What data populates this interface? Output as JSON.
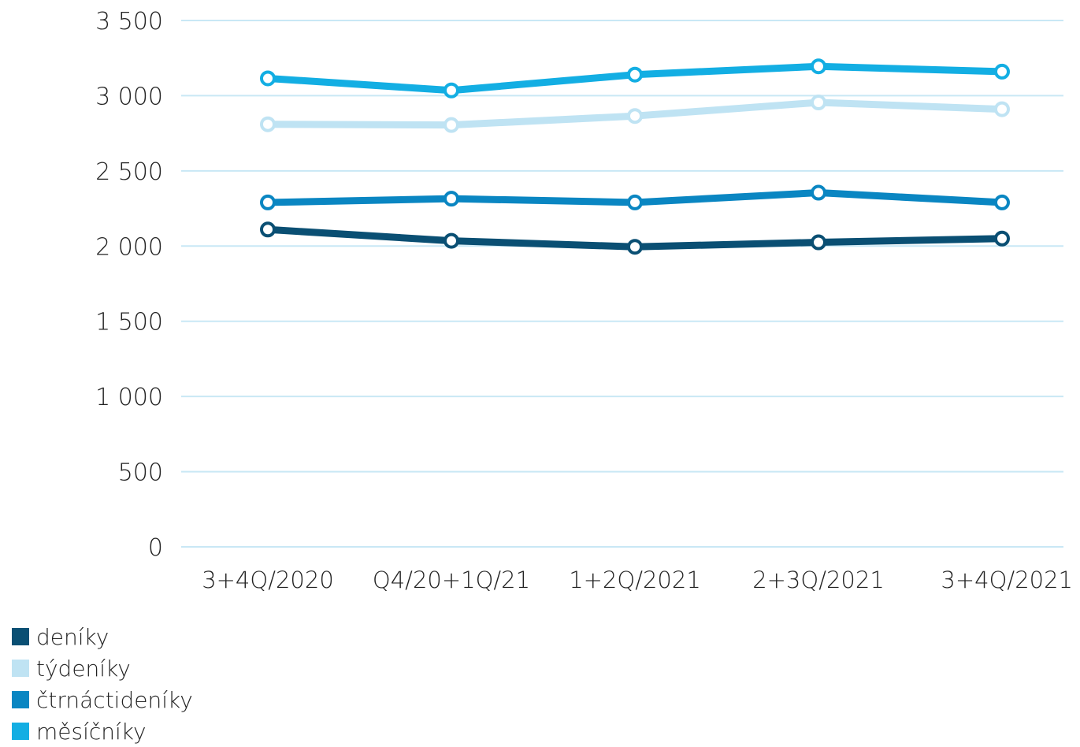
{
  "chart_data": {
    "type": "line",
    "categories": [
      "3+4Q/2020",
      "Q4/20+1Q/21",
      "1+2Q/2021",
      "2+3Q/2021",
      "3+4Q/2021"
    ],
    "ylim": [
      0,
      3500
    ],
    "yticks": [
      0,
      500,
      1000,
      1500,
      2000,
      2500,
      3000,
      3500
    ],
    "ytick_labels": [
      "0",
      "500",
      "1 000",
      "1 500",
      "2 000",
      "2 500",
      "3 000",
      "3 500"
    ],
    "grid": true,
    "legend_position": "bottom-left",
    "series": [
      {
        "name": "deníky",
        "color": "#0a4f73",
        "values": [
          2110,
          2035,
          1995,
          2025,
          2050
        ]
      },
      {
        "name": "týdeníky",
        "color": "#bfe3f3",
        "values": [
          2810,
          2805,
          2865,
          2955,
          2910
        ]
      },
      {
        "name": "čtrnáctideníky",
        "color": "#0a86c2",
        "values": [
          2290,
          2315,
          2290,
          2355,
          2290
        ]
      },
      {
        "name": "měsíčníky",
        "color": "#13aee3",
        "values": [
          3115,
          3035,
          3140,
          3195,
          3160
        ]
      }
    ],
    "draw_order": [
      1,
      0,
      2,
      3
    ],
    "gridline_color": "#c9e8f5"
  }
}
